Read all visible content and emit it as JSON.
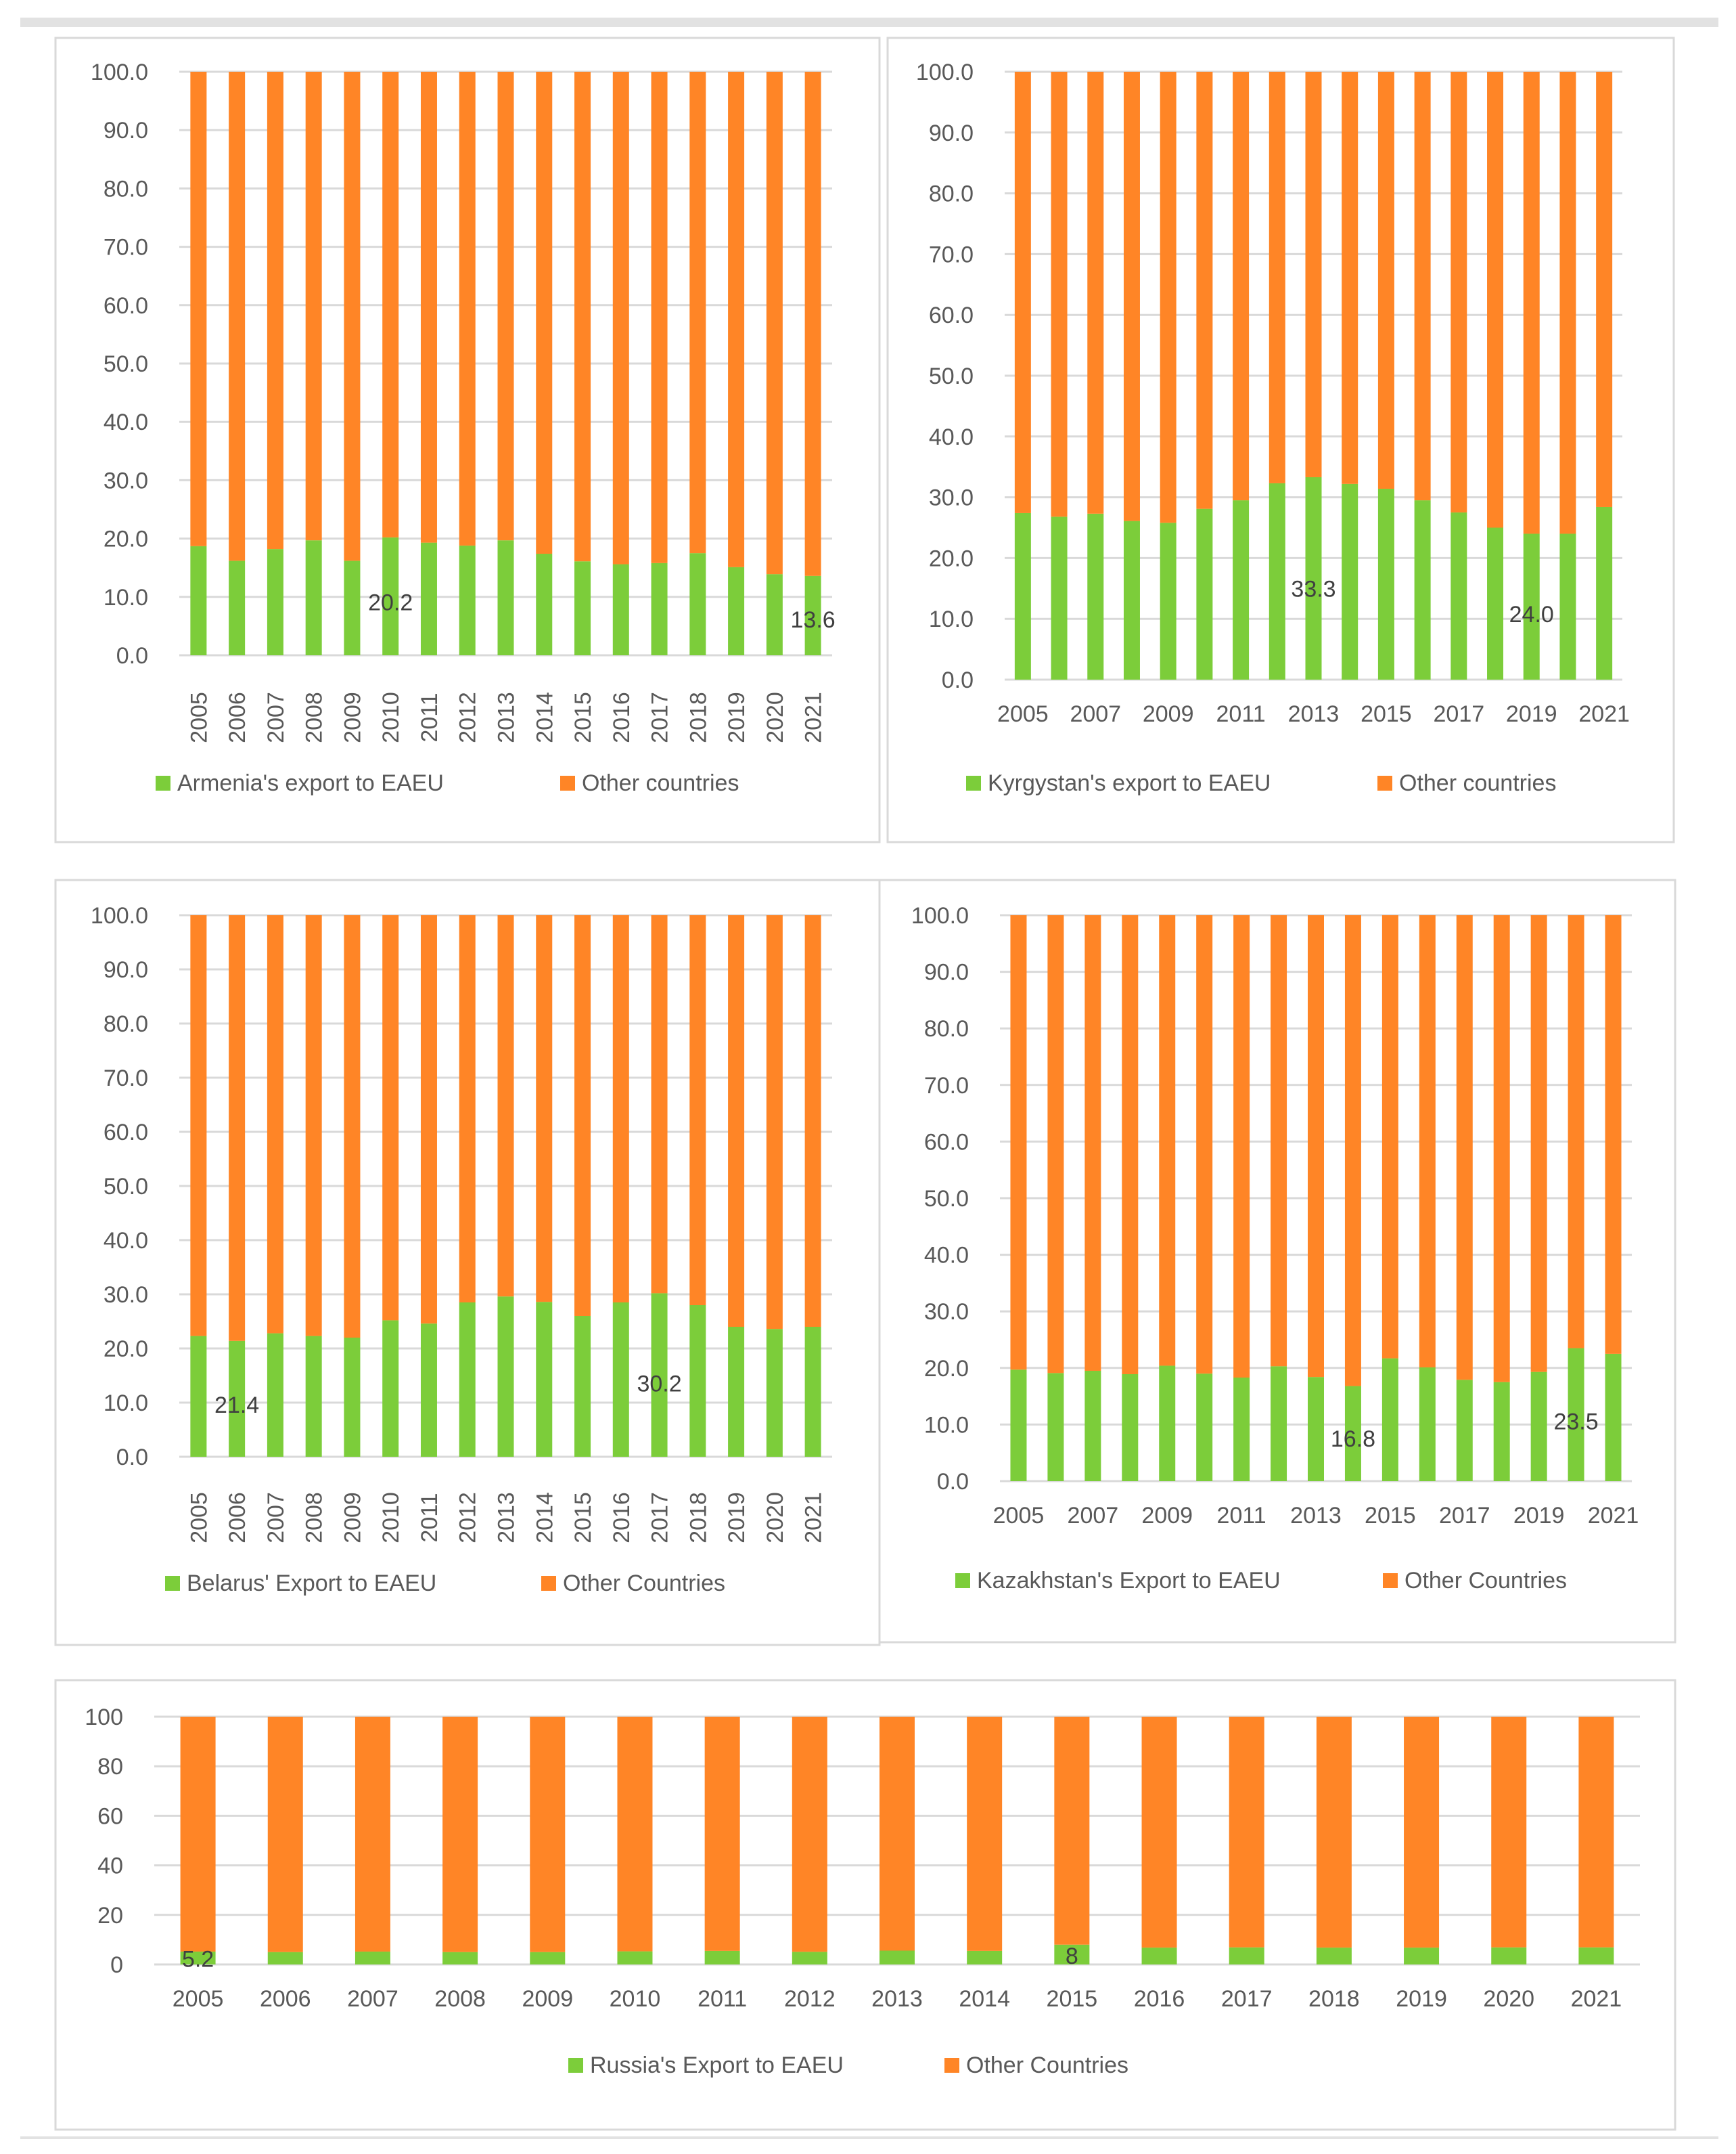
{
  "colors": {
    "eaeu": "#7CCD3A",
    "other": "#FF8526",
    "grid": "#D9D9D9",
    "text": "#595959",
    "label": "#404040",
    "border": "#D9D9D9"
  },
  "chart_data": [
    {
      "type": "bar",
      "stacked": true,
      "categories": [
        "2005",
        "2006",
        "2007",
        "2008",
        "2009",
        "2010",
        "2011",
        "2012",
        "2013",
        "2014",
        "2015",
        "2016",
        "2017",
        "2018",
        "2019",
        "2020",
        "2021"
      ],
      "ylim": [
        0,
        100
      ],
      "yticks": [
        "0.0",
        "10.0",
        "20.0",
        "30.0",
        "40.0",
        "50.0",
        "60.0",
        "70.0",
        "80.0",
        "90.0",
        "100.0"
      ],
      "series": [
        {
          "name": "Armenia's export to EAEU",
          "values": [
            18.7,
            16.2,
            18.2,
            19.7,
            16.2,
            20.2,
            19.3,
            18.8,
            19.7,
            17.4,
            16.1,
            15.6,
            15.8,
            17.5,
            15.1,
            13.9,
            13.6
          ]
        },
        {
          "name": "Other countries",
          "values": [
            81.3,
            83.8,
            81.8,
            80.3,
            83.8,
            79.8,
            80.7,
            81.2,
            80.3,
            82.6,
            83.9,
            84.4,
            84.2,
            82.5,
            84.9,
            86.1,
            86.4
          ]
        }
      ],
      "annotations": [
        {
          "category": "2010",
          "text": "20.2"
        },
        {
          "category": "2021",
          "text": "13.6"
        }
      ],
      "legend": "bottom"
    },
    {
      "type": "bar",
      "stacked": true,
      "categories": [
        "2005",
        "2006",
        "2007",
        "2008",
        "2009",
        "2010",
        "2011",
        "2012",
        "2013",
        "2014",
        "2015",
        "2016",
        "2017",
        "2018",
        "2019",
        "2020",
        "2021"
      ],
      "xtick_labels": [
        "2005",
        "",
        "2007",
        "",
        "2009",
        "",
        "2011",
        "",
        "2013",
        "",
        "2015",
        "",
        "2017",
        "",
        "2019",
        "",
        "2021"
      ],
      "ylim": [
        0,
        100
      ],
      "yticks": [
        "0.0",
        "10.0",
        "20.0",
        "30.0",
        "40.0",
        "50.0",
        "60.0",
        "70.0",
        "80.0",
        "90.0",
        "100.0"
      ],
      "series": [
        {
          "name": "Kyrgystan's export to EAEU",
          "values": [
            27.4,
            26.8,
            27.3,
            26.1,
            25.8,
            28.1,
            29.5,
            32.3,
            33.3,
            32.2,
            31.4,
            29.5,
            27.5,
            25.0,
            24.0,
            24.0,
            28.4
          ]
        },
        {
          "name": "Other countries",
          "values": [
            72.6,
            73.2,
            72.7,
            73.9,
            74.2,
            71.9,
            70.5,
            67.7,
            66.7,
            67.8,
            68.6,
            70.5,
            72.5,
            75.0,
            76.0,
            76.0,
            71.6
          ]
        }
      ],
      "annotations": [
        {
          "category": "2013",
          "text": "33.3"
        },
        {
          "category": "2019",
          "text": "24.0"
        }
      ],
      "legend": "bottom"
    },
    {
      "type": "bar",
      "stacked": true,
      "categories": [
        "2005",
        "2006",
        "2007",
        "2008",
        "2009",
        "2010",
        "2011",
        "2012",
        "2013",
        "2014",
        "2015",
        "2016",
        "2017",
        "2018",
        "2019",
        "2020",
        "2021"
      ],
      "ylim": [
        0,
        100
      ],
      "yticks": [
        "0.0",
        "10.0",
        "20.0",
        "30.0",
        "40.0",
        "50.0",
        "60.0",
        "70.0",
        "80.0",
        "90.0",
        "100.0"
      ],
      "series": [
        {
          "name": "Belarus' Export to EAEU",
          "values": [
            22.3,
            21.4,
            22.8,
            22.3,
            22.0,
            25.2,
            24.6,
            28.5,
            29.6,
            28.6,
            26.0,
            28.5,
            30.2,
            28.0,
            24.0,
            23.6,
            24.0
          ]
        },
        {
          "name": "Other Countries",
          "values": [
            77.7,
            78.6,
            77.2,
            77.7,
            78.0,
            74.8,
            75.4,
            71.5,
            70.4,
            71.4,
            74.0,
            71.5,
            69.8,
            72.0,
            76.0,
            76.4,
            76.0
          ]
        }
      ],
      "annotations": [
        {
          "category": "2006",
          "text": "21.4"
        },
        {
          "category": "2017",
          "text": "30.2"
        }
      ],
      "legend": "bottom"
    },
    {
      "type": "bar",
      "stacked": true,
      "categories": [
        "2005",
        "2006",
        "2007",
        "2008",
        "2009",
        "2010",
        "2011",
        "2012",
        "2013",
        "2014",
        "2015",
        "2016",
        "2017",
        "2018",
        "2019",
        "2020",
        "2021"
      ],
      "xtick_labels": [
        "2005",
        "",
        "2007",
        "",
        "2009",
        "",
        "2011",
        "",
        "2013",
        "",
        "2015",
        "",
        "2017",
        "",
        "2019",
        "",
        "2021"
      ],
      "ylim": [
        0,
        100
      ],
      "yticks": [
        "0.0",
        "10.0",
        "20.0",
        "30.0",
        "40.0",
        "50.0",
        "60.0",
        "70.0",
        "80.0",
        "90.0",
        "100.0"
      ],
      "series": [
        {
          "name": "Kazakhstan's Export to EAEU",
          "values": [
            19.7,
            19.1,
            19.5,
            18.9,
            20.4,
            19.0,
            18.3,
            20.3,
            18.4,
            16.8,
            21.7,
            20.1,
            17.9,
            17.5,
            19.3,
            23.5,
            22.5
          ]
        },
        {
          "name": "Other Countries",
          "values": [
            80.3,
            80.9,
            80.5,
            81.1,
            79.6,
            81.0,
            81.7,
            79.7,
            81.6,
            83.2,
            78.3,
            79.9,
            82.1,
            82.5,
            80.7,
            76.5,
            77.5
          ]
        }
      ],
      "annotations": [
        {
          "category": "2014",
          "text": "16.8"
        },
        {
          "category": "2020",
          "text": "23.5"
        }
      ],
      "legend": "bottom"
    },
    {
      "type": "bar",
      "stacked": true,
      "categories": [
        "2005",
        "2006",
        "2007",
        "2008",
        "2009",
        "2010",
        "2011",
        "2012",
        "2013",
        "2014",
        "2015",
        "2016",
        "2017",
        "2018",
        "2019",
        "2020",
        "2021"
      ],
      "ylim": [
        0,
        100
      ],
      "yticks": [
        "0",
        "20",
        "40",
        "60",
        "80",
        "100"
      ],
      "series": [
        {
          "name": "Russia's Export to EAEU",
          "values": [
            5.2,
            5.0,
            5.2,
            5.0,
            5.0,
            5.3,
            5.5,
            5.1,
            5.6,
            5.5,
            8.0,
            6.8,
            6.9,
            6.8,
            6.8,
            6.9,
            6.9
          ]
        },
        {
          "name": "Other Countries",
          "values": [
            94.8,
            95.0,
            94.8,
            95.0,
            95.0,
            94.7,
            94.5,
            94.9,
            94.4,
            94.5,
            92.0,
            93.2,
            93.1,
            93.2,
            93.2,
            93.1,
            93.1
          ]
        }
      ],
      "annotations": [
        {
          "category": "2005",
          "text": "5.2"
        },
        {
          "category": "2015",
          "text": "8"
        }
      ],
      "legend": "bottom"
    }
  ]
}
